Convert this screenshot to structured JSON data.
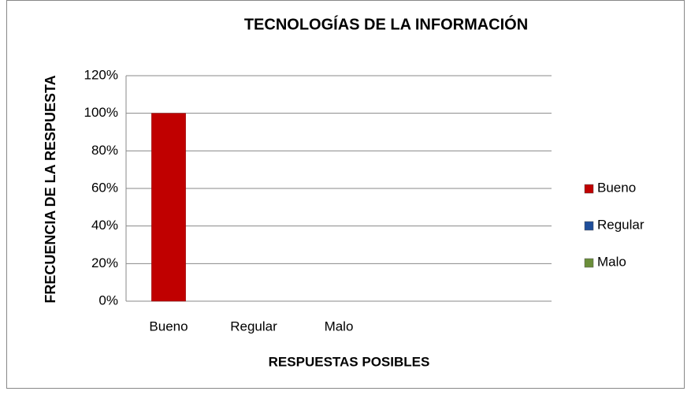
{
  "chart_data": {
    "type": "bar",
    "title": "TECNOLOGÍAS DE LA INFORMACIÓN",
    "x_label": "RESPUESTAS POSIBLES",
    "y_label": "FRECUENCIA DE LA RESPUESTA",
    "categories": [
      "Bueno",
      "Regular",
      "Malo",
      null,
      null
    ],
    "values": [
      100,
      0,
      0,
      null,
      null
    ],
    "colors": [
      "#c00000",
      "#1f4e9a",
      "#6b8e3a"
    ],
    "ylim": [
      0,
      120
    ],
    "yticks": [
      {
        "value": 0,
        "label": "0%"
      },
      {
        "value": 20,
        "label": "20%"
      },
      {
        "value": 40,
        "label": "40%"
      },
      {
        "value": 60,
        "label": "60%"
      },
      {
        "value": 80,
        "label": "80%"
      },
      {
        "value": 100,
        "label": "100%"
      },
      {
        "value": 120,
        "label": "120%"
      }
    ],
    "grid": true,
    "legend": "right"
  }
}
